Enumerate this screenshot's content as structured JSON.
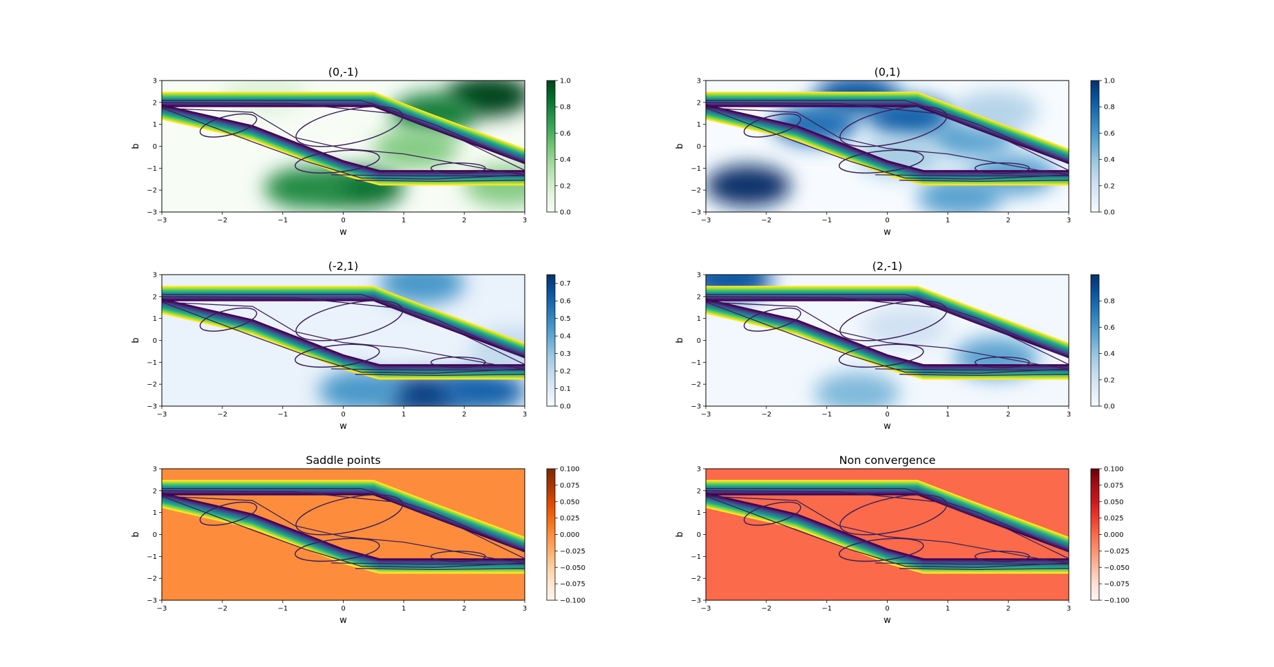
{
  "figure": {
    "background": "#ffffff",
    "contour_color": "#3b1f5a",
    "band_colors": [
      "#fde725",
      "#b5de2b",
      "#6ece58",
      "#35b779",
      "#1f9e89",
      "#26828e",
      "#31688e",
      "#3e4989",
      "#482878",
      "#440154"
    ]
  },
  "chart_data": [
    {
      "type": "heatmap",
      "title": "(0,-1)",
      "xlabel": "w",
      "ylabel": "b",
      "xlim": [
        -3,
        3
      ],
      "ylim": [
        -3,
        3
      ],
      "xticks": [
        -3,
        -2,
        -1,
        0,
        1,
        2,
        3
      ],
      "yticks": [
        -3,
        -2,
        -1,
        0,
        1,
        2,
        3
      ],
      "colormap": "Greens",
      "colorbar": {
        "range": [
          0.0,
          1.0
        ],
        "ticks": [
          "0.0",
          "0.2",
          "0.4",
          "0.6",
          "0.8",
          "1.0"
        ]
      },
      "regions": [
        {
          "w": 2.4,
          "b": 2.3,
          "value": 1.0
        },
        {
          "w": 1.5,
          "b": 1.5,
          "value": 0.8
        },
        {
          "w": 0.3,
          "b": -1.9,
          "value": 0.85
        },
        {
          "w": -0.6,
          "b": -1.9,
          "value": 0.75
        },
        {
          "w": 1.2,
          "b": -0.1,
          "value": 0.45
        },
        {
          "w": 2.7,
          "b": -1.8,
          "value": 0.45
        },
        {
          "w": -1.3,
          "b": 2.4,
          "value": 0.15
        }
      ],
      "background_value": 0.0
    },
    {
      "type": "heatmap",
      "title": "(0,1)",
      "xlabel": "w",
      "ylabel": "b",
      "xlim": [
        -3,
        3
      ],
      "ylim": [
        -3,
        3
      ],
      "xticks": [
        -3,
        -2,
        -1,
        0,
        1,
        2,
        3
      ],
      "yticks": [
        -3,
        -2,
        -1,
        0,
        1,
        2,
        3
      ],
      "colormap": "Blues",
      "colorbar": {
        "range": [
          0.0,
          1.0
        ],
        "ticks": [
          "0.0",
          "0.2",
          "0.4",
          "0.6",
          "0.8",
          "1.0"
        ]
      },
      "regions": [
        {
          "w": -2.3,
          "b": -1.8,
          "value": 1.0
        },
        {
          "w": -0.5,
          "b": 2.3,
          "value": 0.85
        },
        {
          "w": 0.4,
          "b": 1.3,
          "value": 0.8
        },
        {
          "w": -1.2,
          "b": 1.0,
          "value": 0.75
        },
        {
          "w": 1.4,
          "b": 0.4,
          "value": 0.55
        },
        {
          "w": 2.1,
          "b": -1.3,
          "value": 0.55
        },
        {
          "w": 1.2,
          "b": -2.3,
          "value": 0.55
        },
        {
          "w": 1.8,
          "b": 1.6,
          "value": 0.3
        },
        {
          "w": 0.2,
          "b": -0.5,
          "value": 0.35
        }
      ],
      "background_value": 0.0
    },
    {
      "type": "heatmap",
      "title": "(-2,1)",
      "xlabel": "w",
      "ylabel": "b",
      "xlim": [
        -3,
        3
      ],
      "ylim": [
        -3,
        3
      ],
      "xticks": [
        -3,
        -2,
        -1,
        0,
        1,
        2,
        3
      ],
      "yticks": [
        -3,
        -2,
        -1,
        0,
        1,
        2,
        3
      ],
      "colormap": "Blues",
      "colorbar": {
        "range": [
          0.0,
          0.75
        ],
        "ticks": [
          "0.0",
          "0.1",
          "0.2",
          "0.3",
          "0.4",
          "0.5",
          "0.6",
          "0.7"
        ]
      },
      "regions": [
        {
          "w": 1.3,
          "b": -2.5,
          "value": 0.7
        },
        {
          "w": 2.3,
          "b": -2.3,
          "value": 0.6
        },
        {
          "w": 0.3,
          "b": -2.3,
          "value": 0.45
        },
        {
          "w": 1.3,
          "b": 2.6,
          "value": 0.45
        },
        {
          "w": 2.8,
          "b": -0.4,
          "value": 0.2
        }
      ],
      "background_value": 0.05
    },
    {
      "type": "heatmap",
      "title": "(2,-1)",
      "xlabel": "w",
      "ylabel": "b",
      "xlim": [
        -3,
        3
      ],
      "ylim": [
        -3,
        3
      ],
      "xticks": [
        -3,
        -2,
        -1,
        0,
        1,
        2,
        3
      ],
      "yticks": [
        -3,
        -2,
        -1,
        0,
        1,
        2,
        3
      ],
      "colormap": "Blues",
      "colorbar": {
        "range": [
          0.0,
          1.0
        ],
        "ticks": [
          "0.0",
          "0.2",
          "0.4",
          "0.6",
          "0.8"
        ]
      },
      "regions": [
        {
          "w": -2.6,
          "b": 2.8,
          "value": 0.85
        },
        {
          "w": -0.5,
          "b": -2.4,
          "value": 0.45
        },
        {
          "w": 1.8,
          "b": -0.8,
          "value": 0.55
        },
        {
          "w": 0.3,
          "b": 0.6,
          "value": 0.2
        }
      ],
      "background_value": 0.02
    },
    {
      "type": "heatmap",
      "title": "Saddle points",
      "xlabel": "w",
      "ylabel": "b",
      "xlim": [
        -3,
        3
      ],
      "ylim": [
        -3,
        3
      ],
      "xticks": [
        -3,
        -2,
        -1,
        0,
        1,
        2,
        3
      ],
      "yticks": [
        -3,
        -2,
        -1,
        0,
        1,
        2,
        3
      ],
      "colormap": "Oranges",
      "colorbar": {
        "range": [
          -0.1,
          0.1
        ],
        "ticks": [
          "0.100",
          "0.075",
          "0.050",
          "0.025",
          "0.000",
          "−0.025",
          "−0.050",
          "−0.075",
          "−0.100"
        ]
      },
      "regions": [],
      "background_value": 0.0
    },
    {
      "type": "heatmap",
      "title": "Non convergence",
      "xlabel": "w",
      "ylabel": "b",
      "xlim": [
        -3,
        3
      ],
      "ylim": [
        -3,
        3
      ],
      "xticks": [
        -3,
        -2,
        -1,
        0,
        1,
        2,
        3
      ],
      "yticks": [
        -3,
        -2,
        -1,
        0,
        1,
        2,
        3
      ],
      "colormap": "Reds",
      "colorbar": {
        "range": [
          -0.1,
          0.1
        ],
        "ticks": [
          "0.100",
          "0.075",
          "0.050",
          "0.025",
          "0.000",
          "−0.025",
          "−0.050",
          "−0.075",
          "−0.100"
        ]
      },
      "regions": [],
      "background_value": 0.0
    }
  ]
}
